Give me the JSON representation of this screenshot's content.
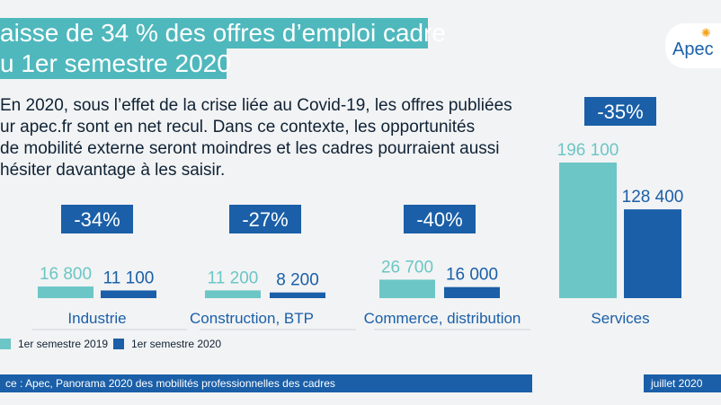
{
  "header": {
    "title_line1": "aisse de 34 % des offres d’emploi cadre",
    "title_line2": "u 1er semestre 2020",
    "logo_text": "Apec"
  },
  "intro_lines": [
    "En 2020, sous l’effet de la crise liée au Covid-19,  les offres publiées",
    "ur apec.fr sont en net recul. Dans ce contexte, les opportunités",
    "de mobilité externe seront moindres et les cadres pourraient aussi",
    "hésiter davantage à les saisir."
  ],
  "chart_data": {
    "type": "bar",
    "categories": [
      "Industrie",
      "Construction, BTP",
      "Commerce, distribution",
      "Services"
    ],
    "series": [
      {
        "name": "1er semestre 2019",
        "values": [
          16800,
          11200,
          26700,
          196100
        ],
        "labels": [
          "16 800",
          "11 200",
          "26 700",
          "196 100"
        ]
      },
      {
        "name": "1er semestre 2020",
        "values": [
          11100,
          8200,
          16000,
          128400
        ],
        "labels": [
          "11 100",
          "8 200",
          "16 000",
          "128 400"
        ]
      }
    ],
    "changes": [
      "-34%",
      "-27%",
      "-40%",
      "-35%"
    ],
    "colors": {
      "s2019": "#6cc6c6",
      "s2020": "#1a5fa8",
      "change_box": "#1a5fa8"
    },
    "grid": false,
    "legend": "bottom-left"
  },
  "legend": {
    "s2019": "1er semestre 2019",
    "s2020": "1er semestre 2020"
  },
  "footer": {
    "source": "ce : Apec, Panorama 2020 des mobilités professionnelles des cadres",
    "date": "juillet 2020"
  }
}
